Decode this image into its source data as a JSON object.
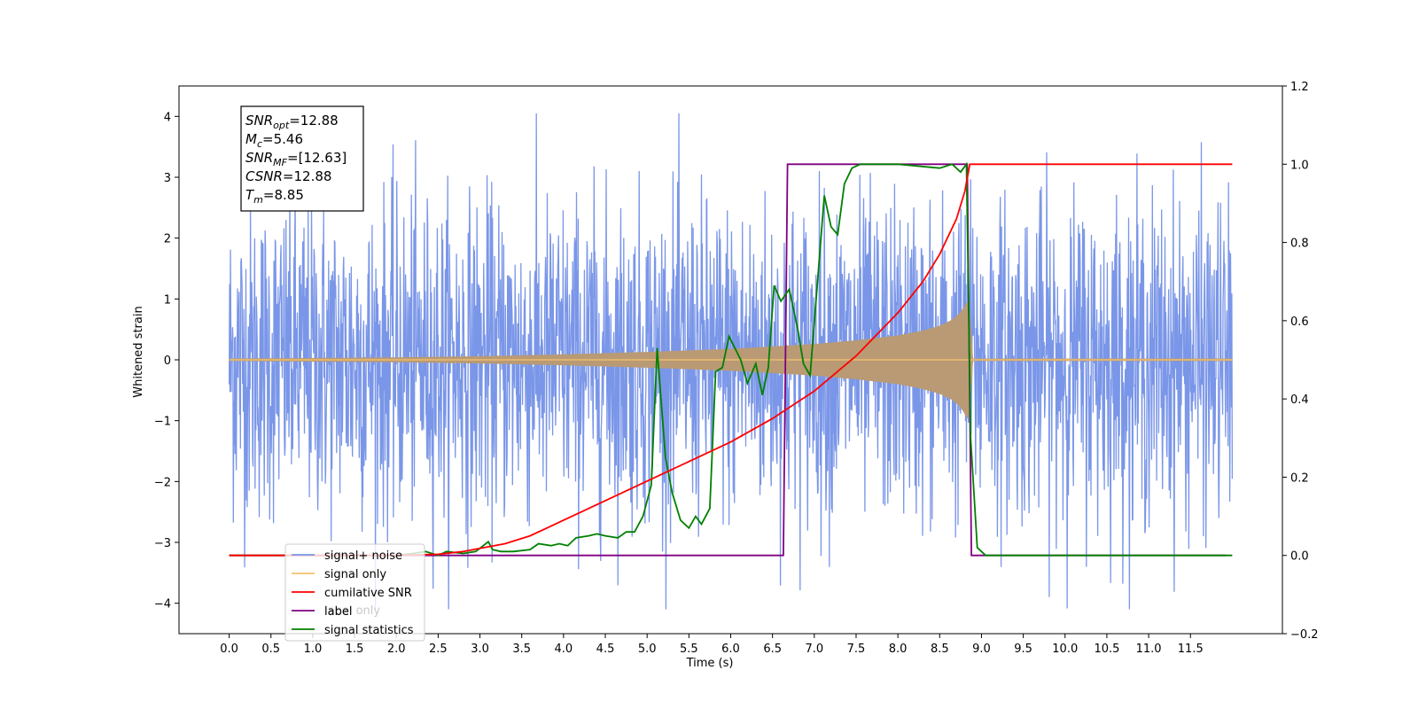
{
  "chart_data": {
    "type": "line",
    "xlabel": "Time (s)",
    "ylabel": "Whitened strain",
    "x_ticks": [
      "0.0",
      "0.5",
      "1.0",
      "1.5",
      "2.0",
      "2.5",
      "3.0",
      "3.5",
      "4.0",
      "4.5",
      "5.0",
      "5.5",
      "6.0",
      "6.5",
      "7.0",
      "7.5",
      "8.0",
      "8.5",
      "9.0",
      "9.5",
      "10.0",
      "10.5",
      "11.0",
      "11.5"
    ],
    "y_ticks": [
      "4",
      "3",
      "2",
      "1",
      "0",
      "−1",
      "−2",
      "−3",
      "−4"
    ],
    "y2_ticks": [
      "1.2",
      "1.0",
      "0.8",
      "0.6",
      "0.4",
      "0.2",
      "0.0",
      "−0.2"
    ],
    "xlim": [
      -0.6,
      12.6
    ],
    "ylim": [
      -4.5,
      4.5
    ],
    "y2lim": [
      -0.2,
      1.2
    ],
    "grid": false,
    "legend_position": "lower-left",
    "colors": {
      "noise": "#7a96e8",
      "signal": "#f7c36a",
      "envelope": "#b99a74",
      "cumsnr": "#ff0000",
      "label": "#800080",
      "stats": "#008000"
    },
    "info_box": [
      {
        "name": "SNR",
        "sub": "opt",
        "value": "=12.88"
      },
      {
        "name": "M",
        "sub": "c",
        "value": "=5.46"
      },
      {
        "name": "SNR",
        "sub": "MF",
        "value": "=[12.63]"
      },
      {
        "name": "CSNR",
        "sub": "",
        "value": "=12.88"
      },
      {
        "name": "T",
        "sub": "m",
        "value": "=8.85"
      }
    ],
    "legend": [
      "signal+ noise",
      "signal only",
      "cumilative SNR",
      "label",
      "signal statistics"
    ],
    "legend_overlapped_text": "label only",
    "series": [
      {
        "name": "signal+ noise",
        "axis": "left",
        "x_range": [
          0.0,
          12.0
        ],
        "description_values": {
          "typical_amplitude": 1.3,
          "max_peak": 4.05,
          "min_peak": -4.1,
          "point_count": 2400
        }
      },
      {
        "name": "signal only",
        "axis": "left",
        "envelope_x": [
          0,
          1,
          2,
          3,
          4,
          5,
          6,
          7,
          7.5,
          8,
          8.3,
          8.5,
          8.65,
          8.75,
          8.85,
          8.9,
          12.0
        ],
        "envelope_amp": [
          0.02,
          0.03,
          0.04,
          0.06,
          0.09,
          0.13,
          0.18,
          0.26,
          0.32,
          0.4,
          0.48,
          0.56,
          0.66,
          0.78,
          1.0,
          0.02,
          0.02
        ]
      },
      {
        "name": "cumilative SNR",
        "axis": "right",
        "x": [
          0.0,
          2.0,
          2.5,
          2.8,
          3.0,
          3.3,
          3.6,
          3.9,
          4.2,
          4.5,
          4.8,
          5.1,
          5.5,
          6.0,
          6.5,
          7.0,
          7.5,
          8.0,
          8.3,
          8.5,
          8.7,
          8.8,
          8.86,
          9.0,
          12.0
        ],
        "y": [
          0.0,
          0.0,
          0.003,
          0.01,
          0.018,
          0.03,
          0.05,
          0.08,
          0.11,
          0.14,
          0.17,
          0.2,
          0.24,
          0.29,
          0.35,
          0.42,
          0.51,
          0.62,
          0.7,
          0.77,
          0.86,
          0.93,
          1.0,
          1.0,
          1.0
        ]
      },
      {
        "name": "label",
        "axis": "right",
        "x": [
          0.0,
          6.63,
          6.68,
          8.83,
          8.88,
          11.93
        ],
        "y": [
          0.0,
          0.0,
          1.0,
          1.0,
          0.0,
          0.0
        ]
      },
      {
        "name": "signal statistics",
        "axis": "right",
        "x": [
          0.0,
          2.0,
          2.2,
          2.35,
          2.5,
          2.6,
          2.8,
          2.95,
          3.1,
          3.15,
          3.25,
          3.4,
          3.6,
          3.7,
          3.85,
          3.95,
          4.05,
          4.15,
          4.3,
          4.4,
          4.5,
          4.65,
          4.75,
          4.85,
          4.95,
          5.05,
          5.12,
          5.22,
          5.3,
          5.4,
          5.5,
          5.58,
          5.65,
          5.75,
          5.82,
          5.9,
          5.98,
          6.05,
          6.12,
          6.2,
          6.3,
          6.38,
          6.45,
          6.52,
          6.6,
          6.7,
          6.8,
          6.87,
          6.95,
          7.05,
          7.12,
          7.2,
          7.28,
          7.36,
          7.45,
          7.55,
          8.0,
          8.5,
          8.65,
          8.75,
          8.82,
          8.87,
          8.95,
          9.05,
          12.0
        ],
        "y": [
          0.0,
          0.0,
          0.005,
          0.01,
          0.0,
          0.01,
          0.005,
          0.01,
          0.035,
          0.015,
          0.01,
          0.01,
          0.015,
          0.03,
          0.025,
          0.03,
          0.025,
          0.045,
          0.05,
          0.055,
          0.05,
          0.045,
          0.06,
          0.06,
          0.1,
          0.18,
          0.53,
          0.25,
          0.16,
          0.09,
          0.07,
          0.1,
          0.08,
          0.12,
          0.47,
          0.48,
          0.56,
          0.53,
          0.5,
          0.44,
          0.49,
          0.41,
          0.48,
          0.69,
          0.65,
          0.68,
          0.58,
          0.49,
          0.46,
          0.73,
          0.92,
          0.84,
          0.82,
          0.95,
          0.99,
          1.0,
          1.0,
          0.99,
          1.0,
          0.98,
          1.0,
          0.3,
          0.02,
          0.0,
          0.0
        ]
      }
    ]
  }
}
